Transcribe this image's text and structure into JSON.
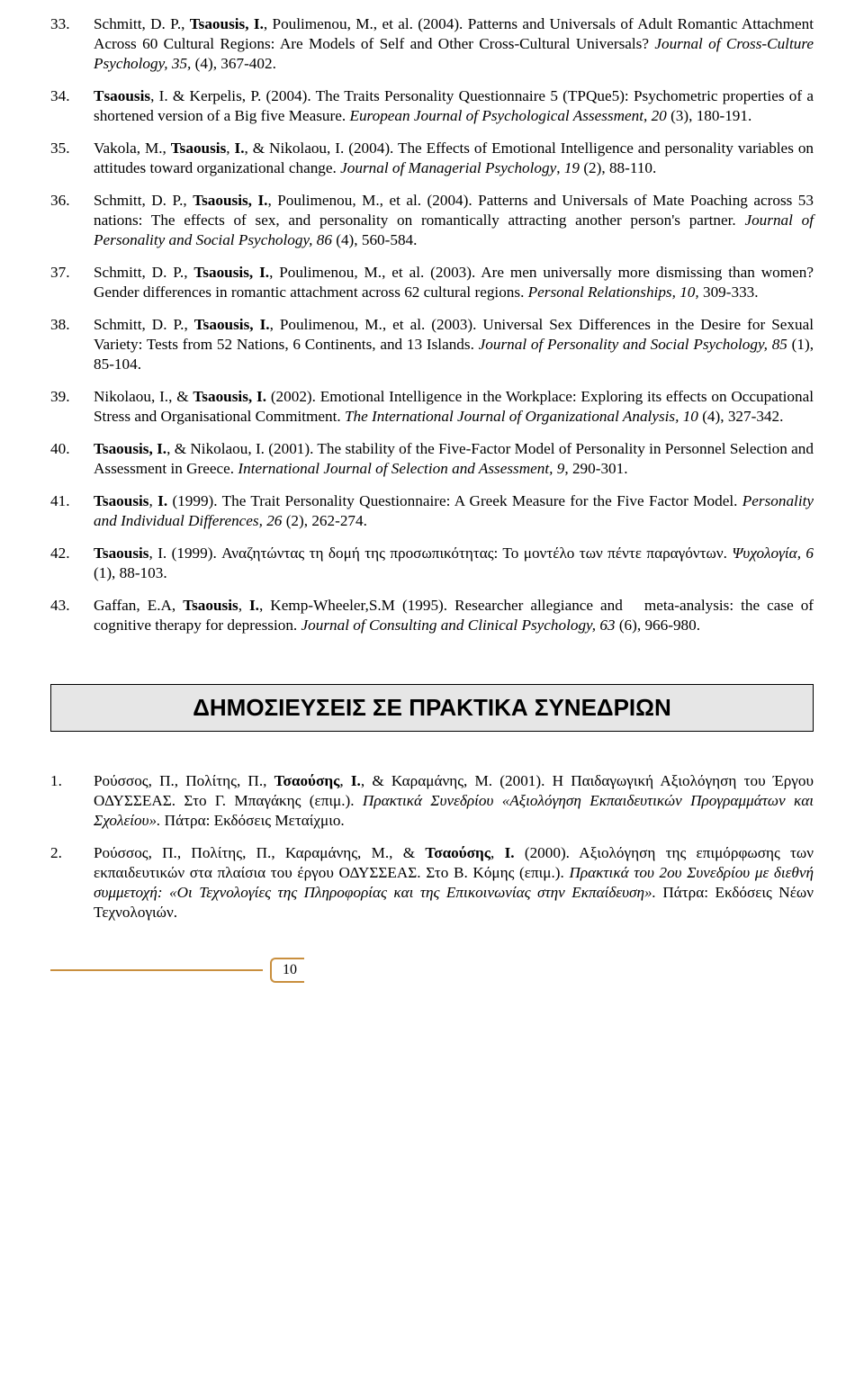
{
  "refs": [
    {
      "num": "33.",
      "html": "Schmitt, D. P., <b>Tsaousis, I.</b>, Poulimenou, M., et al. (2004). Patterns and Universals of Adult Romantic Attachment Across 60 Cultural Regions: Are Models of Self and Other Cross-Cultural Universals? <i>Journal of Cross-Culture Psychology, 35,</i> (4), 367-402."
    },
    {
      "num": "34.",
      "html": "<b>Τsaousis</b>, I. & Kerpelis, P. (2004). The Traits Personality Questionnaire 5 (TPQue5): Psychometric properties of a shortened version of a Big five Measure. <i>European Journal of Psychological Assessment, 20</i> (3), 180-191."
    },
    {
      "num": "35.",
      "html": "Vakola, M., <b>Tsaousis</b>, <b>I.</b>, & Nikolaou, I. (2004). The Effects of Emotional Intelligence and personality variables on attitudes toward organizational change. <i>Journal of Managerial Psychology</i>, <i>19</i> (2), 88-110."
    },
    {
      "num": "36.",
      "html": "Schmitt, D. P., <b>Tsaousis, I.</b>, Poulimenou, M., et al. (2004). Patterns and Universals of Mate Poaching across 53 nations: The effects of sex, and personality on romantically attracting another person's partner. <i>Journal of Personality and Social Psychology, 86</i> (4), 560-584."
    },
    {
      "num": "37.",
      "html": "Schmitt, D. P., <b>Tsaousis, I.</b>, Poulimenou, M., et al. (2003). Are men universally more dismissing than women? Gender differences in romantic attachment across 62 cultural regions. <i>Personal Relationships, 10,</i> 309-333."
    },
    {
      "num": "38.",
      "html": "Schmitt, D. P., <b>Tsaousis, I.</b>, Poulimenou, M., et al. (2003). Universal Sex Differences in the Desire for Sexual Variety: Tests from 52 Nations, 6 Continents, and 13 Islands. <i>Journal of Personality and Social Psychology, 85</i> (1), 85-104."
    },
    {
      "num": "39.",
      "html": "Nikolaou, I., & <b>Tsaousis, I.</b> (2002). Emotional Intelligence in the Workplace: Exploring its effects on Occupational Stress and Organisational Commitment. <i>The International Journal of Organizational Analysis, 10</i> (4), 327-342."
    },
    {
      "num": "40.",
      "html": "<b>Tsaousis, I.</b>, & Nikolaou, I. (2001). The stability of the Five-Factor Model of Personality in Personnel Selection and Assessment in Greece. <i>International Journal of Selection and Assessment, 9</i>, 290-301."
    },
    {
      "num": "41.",
      "html": "<b>Tsaousis</b>, <b>I.</b> (1999). The Trait Personality Questionnaire: A Greek Measure for the Five Factor Model. <i>Personality and Individual Differences, 26</i> (2), 262-274."
    },
    {
      "num": "42.",
      "html": "<b>Tsaousis</b>, I. (1999). Αναζητώντας τη δομή της προσωπικότητας: Το μοντέλο των πέντε παραγόντων. <i>Ψυχολογία, 6</i> (1), 88-103."
    },
    {
      "num": "43.",
      "html": "Gaffan, E.A, <b>Tsaousis</b>, <b>I.</b>, Kemp-Wheeler,S.M (1995). Researcher allegiance and&nbsp;&nbsp; meta-analysis: the case of cognitive therapy for depression. <i>Journal of Consulting and Clinical Psychology, 63</i> (6), 966-980."
    }
  ],
  "section_title": "ΔΗΜΟΣΙΕΥΣΕΙΣ ΣΕ ΠΡΑΚΤΙΚΑ ΣΥΝΕΔΡΙΩΝ",
  "refs2": [
    {
      "num": "1.",
      "html": "Ρούσσος, Π., Πολίτης, Π., <b>Τσαούσης</b>, <b>Ι.</b>, & Καραμάνης, Μ. (2001). Η Παιδαγωγική Αξιολόγηση του Έργου ΟΔΥΣΣΕΑΣ. Στο Γ. Μπαγάκης (επιμ.). <i>Πρακτικά Συνεδρίου «Αξιολόγηση Εκπαιδευτικών Προγραμμάτων και Σχολείου».</i> Πάτρα: Εκδόσεις Μεταίχμιο."
    },
    {
      "num": "2.",
      "html": "Ρούσσος, Π., Πολίτης, Π., Καραμάνης, Μ., & <b>Τσαούσης</b>, <b>Ι.</b> (2000). Αξιολόγηση της επιμόρφωσης των εκπαιδευτικών στα πλαίσια του έργου ΟΔΥΣΣΕΑΣ. Στο Β. Κόμης (επιμ.). <i>Πρακτικά του 2ου Συνεδρίου με διεθνή συμμετοχή: «Οι Τεχνολογίες της Πληροφορίας και της Επικοινωνίας στην Εκπαίδευση».</i> Πάτρα: Εκδόσεις Νέων Τεχνολογιών."
    }
  ],
  "page_number": "10"
}
